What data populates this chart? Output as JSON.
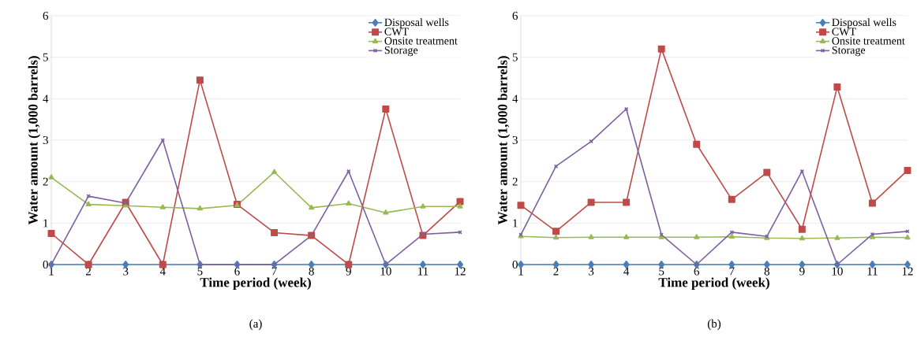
{
  "chart_data": [
    {
      "type": "line",
      "xlabel": "Time period (week)",
      "ylabel": "Water amount (1,000 barrels)",
      "annotations": [
        "(a)"
      ],
      "categories": [
        "1",
        "2",
        "3",
        "4",
        "5",
        "6",
        "7",
        "8",
        "9",
        "10",
        "11",
        "12"
      ],
      "ylim": [
        0,
        6
      ],
      "yticks": [
        0,
        1,
        2,
        3,
        4,
        5,
        6
      ],
      "grid": "y",
      "legend": "top right",
      "line_style": "solid",
      "series": [
        {
          "name": "Disposal wells",
          "color": "#4a7ebb",
          "marker": "diamond",
          "values": [
            0,
            0,
            0,
            0,
            0,
            0,
            0,
            0,
            0,
            0,
            0,
            0
          ]
        },
        {
          "name": "CWT",
          "color": "#be4b48",
          "marker": "square",
          "values": [
            0.75,
            0,
            1.5,
            0,
            4.45,
            1.45,
            0.77,
            0.7,
            0,
            3.75,
            0.7,
            1.52
          ]
        },
        {
          "name": "Onsite treatment",
          "color": "#98b954",
          "marker": "triangle",
          "values": [
            2.1,
            1.45,
            1.42,
            1.38,
            1.35,
            1.43,
            2.23,
            1.37,
            1.47,
            1.25,
            1.4,
            1.4
          ]
        },
        {
          "name": "Storage",
          "color": "#7d60a0",
          "marker": "cross",
          "values": [
            0,
            1.65,
            1.48,
            3.0,
            0,
            0,
            0,
            0.7,
            2.25,
            0,
            0.73,
            0.78
          ]
        }
      ]
    },
    {
      "type": "line",
      "xlabel": "Time period (week)",
      "ylabel": "Water amount (1,000 barrels)",
      "annotations": [
        "(b)"
      ],
      "categories": [
        "1",
        "2",
        "3",
        "4",
        "5",
        "6",
        "7",
        "8",
        "9",
        "10",
        "11",
        "12"
      ],
      "ylim": [
        0,
        6
      ],
      "yticks": [
        0,
        1,
        2,
        3,
        4,
        5,
        6
      ],
      "grid": "y",
      "legend": "top right",
      "line_style": "solid",
      "series": [
        {
          "name": "Disposal wells",
          "color": "#4a7ebb",
          "marker": "diamond",
          "values": [
            0,
            0,
            0,
            0,
            0,
            0,
            0,
            0,
            0,
            0,
            0,
            0
          ]
        },
        {
          "name": "CWT",
          "color": "#be4b48",
          "marker": "square",
          "values": [
            1.43,
            0.8,
            1.5,
            1.5,
            5.2,
            2.9,
            1.57,
            2.22,
            0.85,
            4.28,
            1.48,
            2.27
          ]
        },
        {
          "name": "Onsite treatment",
          "color": "#98b954",
          "marker": "triangle",
          "values": [
            0.68,
            0.65,
            0.66,
            0.66,
            0.66,
            0.66,
            0.67,
            0.64,
            0.63,
            0.64,
            0.66,
            0.65
          ]
        },
        {
          "name": "Storage",
          "color": "#7d60a0",
          "marker": "cross",
          "values": [
            0.72,
            2.37,
            2.97,
            3.75,
            0.72,
            0,
            0.78,
            0.68,
            2.25,
            0,
            0.73,
            0.8
          ]
        }
      ]
    }
  ]
}
